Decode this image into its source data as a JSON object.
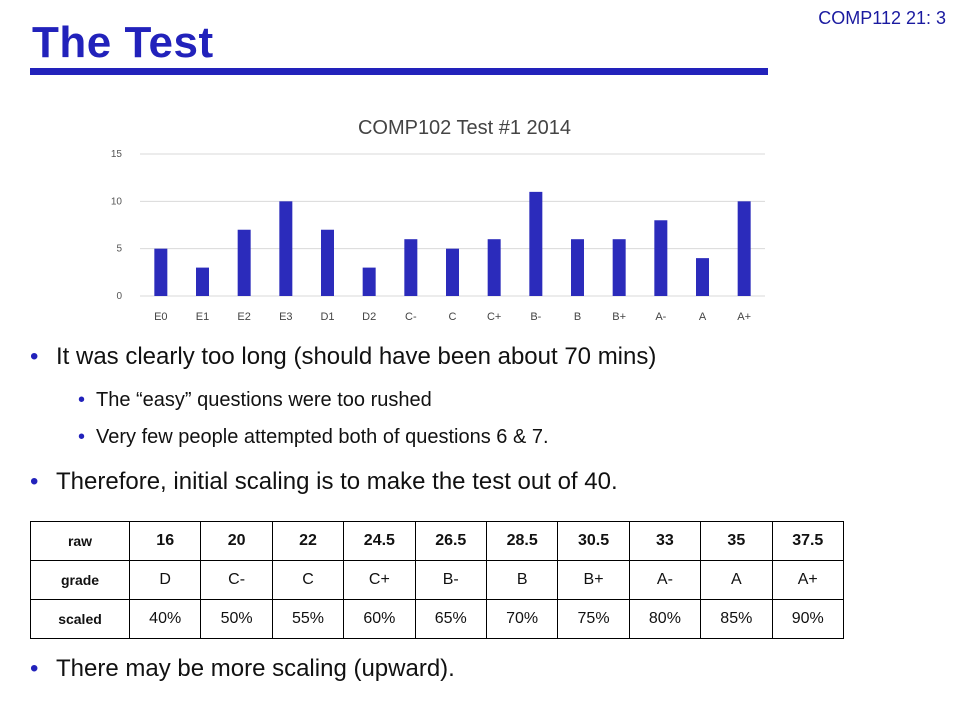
{
  "slide_id": "COMP112 21: 3",
  "title": "The Test",
  "colors": {
    "accent": "#2222bb",
    "bar": "#2b2bbb"
  },
  "chart_data": {
    "type": "bar",
    "title": "COMP102 Test #1 2014",
    "categories": [
      "E0",
      "E1",
      "E2",
      "E3",
      "D1",
      "D2",
      "C-",
      "C",
      "C+",
      "B-",
      "B",
      "B+",
      "A-",
      "A",
      "A+"
    ],
    "values": [
      5,
      3,
      7,
      10,
      7,
      3,
      6,
      5,
      6,
      11,
      6,
      6,
      8,
      4,
      10
    ],
    "yticks": [
      0,
      5,
      10,
      15
    ],
    "ylim": [
      0,
      15
    ],
    "grid": true,
    "xlabel": "",
    "ylabel": ""
  },
  "bullets": {
    "b1": "It was clearly too long (should have been about 70 mins)",
    "b1a": "The “easy” questions were too rushed",
    "b1b": "Very few people attempted both of questions 6 & 7.",
    "b2": "Therefore, initial scaling is to make the test out of 40.",
    "b3": "There may be more scaling (upward)."
  },
  "table": {
    "rows": [
      {
        "header": "raw",
        "cells": [
          "16",
          "20",
          "22",
          "24.5",
          "26.5",
          "28.5",
          "30.5",
          "33",
          "35",
          "37.5"
        ]
      },
      {
        "header": "grade",
        "cells": [
          "D",
          "C-",
          "C",
          "C+",
          "B-",
          "B",
          "B+",
          "A-",
          "A",
          "A+"
        ]
      },
      {
        "header": "scaled",
        "cells": [
          "40%",
          "50%",
          "55%",
          "60%",
          "65%",
          "70%",
          "75%",
          "80%",
          "85%",
          "90%"
        ]
      }
    ]
  }
}
